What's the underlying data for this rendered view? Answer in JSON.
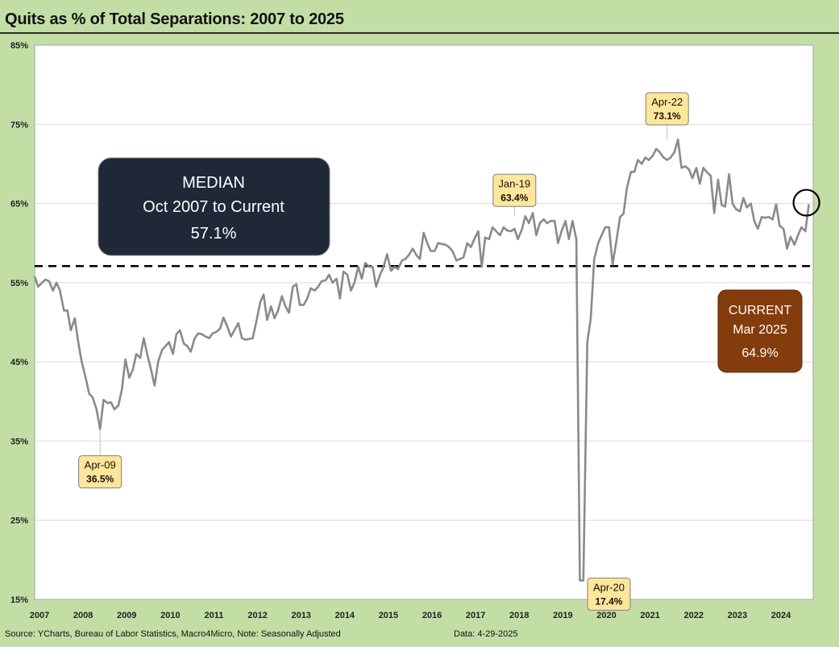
{
  "title": "Quits as % of Total Separations: 2007 to 2025",
  "source_note": "Source: YCharts, Bureau of Labor Statistics, Macro4Micro, Note: Seasonally Adjusted",
  "date_note": "Data: 4-29-2025",
  "colors": {
    "background": "#c3dea5",
    "plot_bg": "#ffffff",
    "series": "#8a8a8a",
    "median_line": "#000000",
    "median_box": "#1f2837",
    "current_box": "#843c0c",
    "callout_fill": "#ffe699"
  },
  "chart_data": {
    "type": "line",
    "title": "Quits as % of Total Separations: 2007 to 2025",
    "xlabel": "",
    "ylabel": "",
    "ylim": [
      15,
      85
    ],
    "yticks": [
      15,
      25,
      35,
      45,
      55,
      65,
      75,
      85
    ],
    "ytick_labels": [
      "15%",
      "25%",
      "35%",
      "45%",
      "55%",
      "65%",
      "75%",
      "85%"
    ],
    "xticks": [
      2007,
      2008,
      2009,
      2010,
      2011,
      2012,
      2013,
      2014,
      2015,
      2016,
      2017,
      2018,
      2019,
      2020,
      2021,
      2022,
      2023,
      2024
    ],
    "xtick_labels": [
      "2007",
      "2008",
      "2009",
      "2010",
      "2011",
      "2012",
      "2013",
      "2014",
      "2015",
      "2016",
      "2017",
      "2018",
      "2019",
      "2020",
      "2021",
      "2022",
      "2023",
      "2024"
    ],
    "xlim": [
      2007.0,
      2024.85
    ],
    "grid": "horizontal",
    "series": [
      {
        "x": [
          2007.0,
          2007.08,
          2007.17,
          2007.25,
          2007.33,
          2007.42,
          2007.5,
          2007.58,
          2007.67,
          2007.75,
          2007.83,
          2007.92,
          2008.0,
          2008.08,
          2008.17,
          2008.25,
          2008.33,
          2008.42,
          2008.5,
          2008.58,
          2008.67,
          2008.75,
          2008.83,
          2008.92,
          2009.0,
          2009.08,
          2009.17,
          2009.25,
          2009.33,
          2009.42,
          2009.5,
          2009.58,
          2009.67,
          2009.75,
          2009.83,
          2009.92,
          2010.0,
          2010.08,
          2010.17,
          2010.25,
          2010.33,
          2010.42,
          2010.5,
          2010.58,
          2010.67,
          2010.75,
          2010.83,
          2010.92,
          2011.0,
          2011.08,
          2011.17,
          2011.25,
          2011.33,
          2011.42,
          2011.5,
          2011.58,
          2011.67,
          2011.75,
          2011.83,
          2011.92,
          2012.0,
          2012.08,
          2012.17,
          2012.25,
          2012.33,
          2012.42,
          2012.5,
          2012.58,
          2012.67,
          2012.75,
          2012.83,
          2012.92,
          2013.0,
          2013.08,
          2013.17,
          2013.25,
          2013.33,
          2013.42,
          2013.5,
          2013.58,
          2013.67,
          2013.75,
          2013.83,
          2013.92,
          2014.0,
          2014.08,
          2014.17,
          2014.25,
          2014.33,
          2014.42,
          2014.5,
          2014.58,
          2014.67,
          2014.75,
          2014.83,
          2014.92,
          2015.0,
          2015.08,
          2015.17,
          2015.25,
          2015.33,
          2015.42,
          2015.5,
          2015.58,
          2015.67,
          2015.75,
          2015.83,
          2015.92,
          2016.0,
          2016.08,
          2016.17,
          2016.25,
          2016.33,
          2016.42,
          2016.5,
          2016.58,
          2016.67,
          2016.75,
          2016.83,
          2016.92,
          2017.0,
          2017.08,
          2017.17,
          2017.25,
          2017.33,
          2017.42,
          2017.5,
          2017.58,
          2017.67,
          2017.75,
          2017.83,
          2017.92,
          2018.0,
          2018.08,
          2018.17,
          2018.25,
          2018.33,
          2018.42,
          2018.5,
          2018.58,
          2018.67,
          2018.75,
          2018.83,
          2018.92,
          2019.0,
          2019.08,
          2019.17,
          2019.25,
          2019.33,
          2019.42,
          2019.5,
          2019.58,
          2019.67,
          2019.75,
          2019.83,
          2019.92,
          2020.0,
          2020.08,
          2020.17,
          2020.25,
          2020.33,
          2020.42,
          2020.5,
          2020.58,
          2020.67,
          2020.75,
          2020.83,
          2020.92,
          2021.0,
          2021.08,
          2021.17,
          2021.25,
          2021.33,
          2021.42,
          2021.5,
          2021.58,
          2021.67,
          2021.75,
          2021.83,
          2021.92,
          2022.0,
          2022.08,
          2022.17,
          2022.25,
          2022.33,
          2022.42,
          2022.5,
          2022.58,
          2022.67,
          2022.75,
          2022.83,
          2022.92,
          2023.0,
          2023.08,
          2023.17,
          2023.25,
          2023.33,
          2023.42,
          2023.5,
          2023.58,
          2023.67,
          2023.75,
          2023.83,
          2023.92,
          2024.0,
          2024.08,
          2024.17,
          2024.25,
          2024.33,
          2024.42,
          2024.5,
          2024.58,
          2024.67,
          2024.75
        ],
        "values": [
          55.8,
          54.5,
          55.0,
          55.4,
          55.2,
          54.0,
          55.0,
          54.0,
          51.5,
          51.5,
          49.0,
          50.5,
          47.5,
          45.0,
          43.0,
          41.0,
          40.5,
          39.0,
          36.5,
          40.2,
          39.8,
          39.9,
          39.0,
          39.5,
          41.5,
          45.3,
          43.0,
          44.0,
          46.0,
          45.5,
          48.0,
          46.0,
          44.0,
          42.0,
          45.0,
          46.5,
          47.0,
          47.5,
          46.0,
          48.5,
          49.0,
          47.3,
          47.0,
          46.3,
          48.0,
          48.6,
          48.5,
          48.2,
          48.0,
          48.6,
          48.8,
          49.2,
          50.6,
          49.4,
          48.2,
          49.0,
          49.9,
          48.0,
          47.8,
          47.9,
          48.0,
          50.0,
          52.5,
          53.5,
          50.3,
          52.0,
          50.5,
          51.5,
          53.3,
          52.0,
          51.2,
          54.5,
          54.8,
          52.2,
          52.2,
          53.0,
          54.3,
          54.0,
          54.5,
          55.2,
          55.3,
          56.0,
          55.0,
          55.5,
          53.0,
          56.4,
          56.0,
          54.0,
          55.0,
          57.0,
          55.5,
          57.5,
          57.0,
          57.0,
          54.5,
          56.0,
          57.0,
          58.6,
          56.5,
          57.0,
          56.7,
          57.8,
          58.0,
          58.5,
          59.3,
          58.5,
          58.0,
          61.3,
          60.0,
          59.0,
          59.0,
          60.0,
          59.9,
          59.8,
          59.5,
          59.0,
          57.8,
          58.0,
          58.2,
          60.0,
          59.5,
          60.5,
          61.5,
          57.0,
          60.7,
          60.5,
          62.0,
          61.5,
          61.0,
          62.0,
          61.6,
          61.5,
          61.8,
          60.5,
          61.7,
          63.4,
          62.5,
          63.8,
          61.0,
          62.5,
          63.0,
          62.5,
          62.8,
          62.8,
          60.0,
          61.5,
          62.8,
          60.5,
          62.8,
          60.5,
          17.4,
          17.4,
          47.5,
          50.5,
          58.0,
          60.0,
          61.0,
          62.0,
          62.0,
          57.3,
          60.0,
          63.3,
          63.7,
          67.0,
          69.0,
          69.0,
          70.5,
          70.0,
          70.8,
          70.5,
          71.0,
          71.9,
          71.5,
          70.8,
          70.5,
          70.8,
          71.5,
          73.1,
          69.5,
          69.7,
          69.3,
          68.2,
          69.5,
          67.5,
          69.5,
          68.9,
          68.5,
          63.8,
          68.0,
          64.8,
          64.6,
          68.7,
          65.0,
          64.3,
          64.0,
          65.7,
          64.5,
          65.0,
          62.8,
          61.8,
          63.3,
          63.2,
          63.3,
          63.0,
          64.9,
          62.2,
          61.8,
          59.3,
          60.8,
          59.8,
          61.0,
          62.0,
          61.5,
          64.9
        ]
      }
    ],
    "median": 57.1,
    "annotations": [
      {
        "label": "Apr-09",
        "value_text": "36.5%",
        "x": 2008.5,
        "y": 36.5
      },
      {
        "label": "Jan-19",
        "value_text": "63.4%",
        "x": 2018.0,
        "y": 63.4
      },
      {
        "label": "Apr-22",
        "value_text": "73.1%",
        "x": 2021.5,
        "y": 73.1
      },
      {
        "label": "Apr-20",
        "value_text": "17.4%",
        "x": 2019.5,
        "y": 17.4
      }
    ],
    "median_box": {
      "line1": "MEDIAN",
      "line2": "Oct 2007 to Current",
      "line3": "57.1%"
    },
    "current_box": {
      "line1": "CURRENT",
      "line2": "Mar 2025",
      "line3": "64.9%"
    }
  }
}
